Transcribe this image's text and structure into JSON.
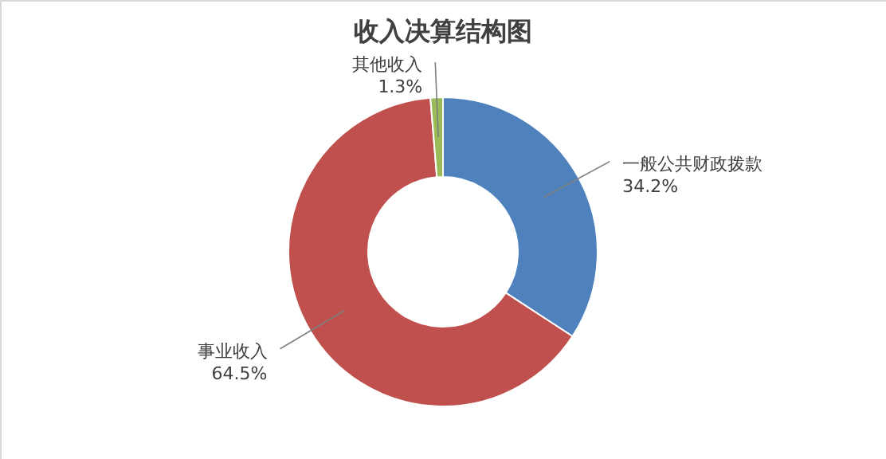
{
  "chart_data": {
    "type": "donut",
    "title": "收入决算结构图",
    "categories": [
      "一般公共财政拨款",
      "事业收入",
      "其他收入"
    ],
    "values": [
      34.2,
      64.5,
      1.3
    ],
    "colors": [
      "#4f81bd",
      "#c0504d",
      "#9bbb59"
    ],
    "value_labels": [
      "34.2%",
      "64.5%",
      "1.3%"
    ]
  }
}
